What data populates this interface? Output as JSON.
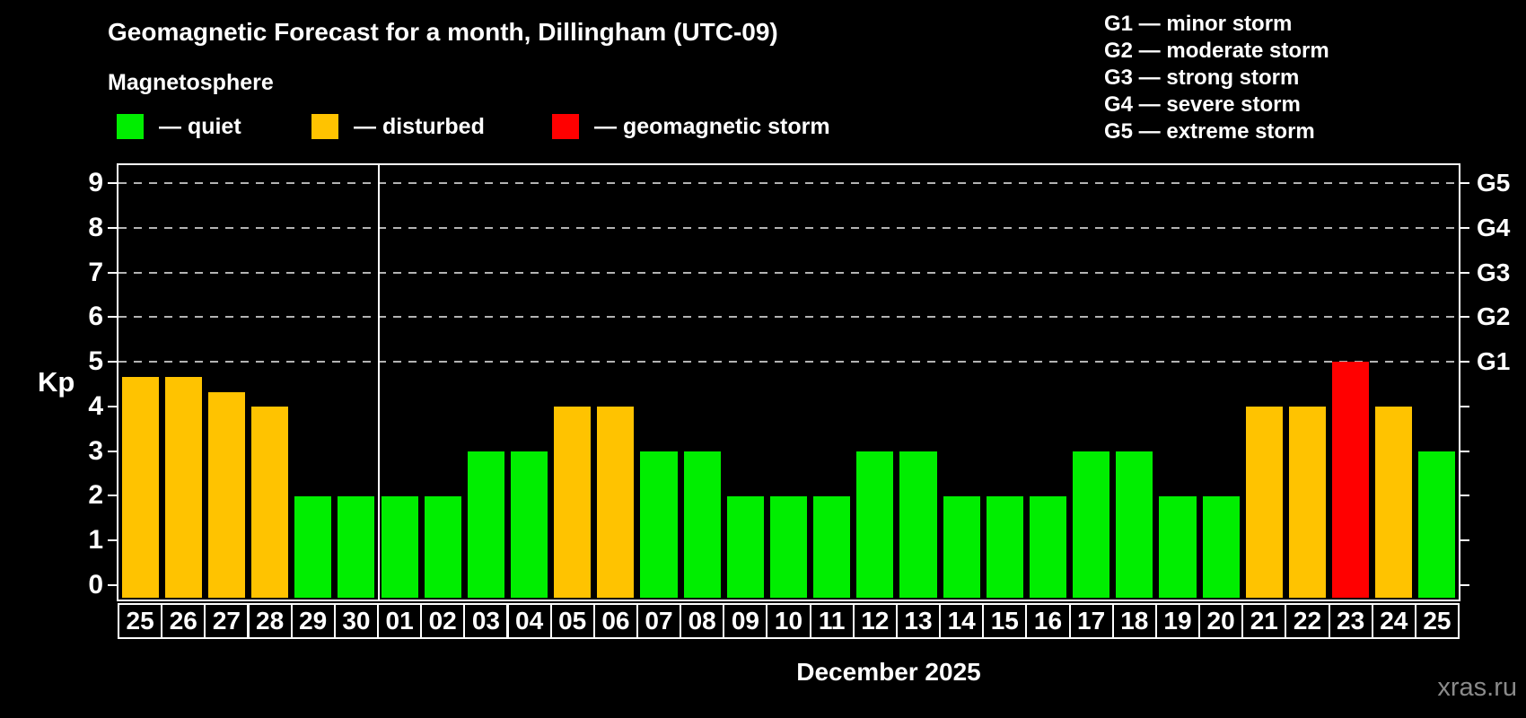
{
  "header": {
    "title": "Geomagnetic Forecast for a month, Dillingham (UTC-09)",
    "subtitle": "Magnetosphere"
  },
  "legend": {
    "items": [
      {
        "key": "quiet",
        "label": "— quiet",
        "color": "#00EE00",
        "x": 130
      },
      {
        "key": "disturbed",
        "label": "— disturbed",
        "color": "#FFC300",
        "x": 347
      },
      {
        "key": "storm",
        "label": "— geomagnetic storm",
        "color": "#FF0000",
        "x": 615
      }
    ]
  },
  "g_scale_legend": [
    "G1 — minor storm",
    "G2 — moderate storm",
    "G3 — strong storm",
    "G4 — severe storm",
    "G5 — extreme storm"
  ],
  "chart_data": {
    "type": "bar",
    "title": "Geomagnetic Forecast for a month, Dillingham (UTC-09)",
    "ylabel": "Kp",
    "xlabel": "December 2025",
    "x": [
      "25",
      "26",
      "27",
      "28",
      "29",
      "30",
      "01",
      "02",
      "03",
      "04",
      "05",
      "06",
      "07",
      "08",
      "09",
      "10",
      "11",
      "12",
      "13",
      "14",
      "15",
      "16",
      "17",
      "18",
      "19",
      "20",
      "21",
      "22",
      "23",
      "24",
      "25"
    ],
    "values": [
      4.67,
      4.67,
      4.33,
      4,
      2,
      2,
      2,
      2,
      3,
      3,
      4,
      4,
      3,
      3,
      2,
      2,
      2,
      3,
      3,
      2,
      2,
      2,
      3,
      3,
      2,
      2,
      4,
      4,
      5,
      4,
      3
    ],
    "states": [
      "disturbed",
      "disturbed",
      "disturbed",
      "disturbed",
      "quiet",
      "quiet",
      "quiet",
      "quiet",
      "quiet",
      "quiet",
      "disturbed",
      "disturbed",
      "quiet",
      "quiet",
      "quiet",
      "quiet",
      "quiet",
      "quiet",
      "quiet",
      "quiet",
      "quiet",
      "quiet",
      "quiet",
      "quiet",
      "quiet",
      "quiet",
      "disturbed",
      "disturbed",
      "storm",
      "disturbed",
      "quiet"
    ],
    "state_colors": {
      "quiet": "#00EE00",
      "disturbed": "#FFC300",
      "storm": "#FF0000"
    },
    "y_ticks": [
      0,
      1,
      2,
      3,
      4,
      5,
      6,
      7,
      8,
      9
    ],
    "gridlines_kp": [
      5,
      6,
      7,
      8,
      9
    ],
    "right_axis": [
      {
        "kp": 5,
        "label": "G1"
      },
      {
        "kp": 6,
        "label": "G2"
      },
      {
        "kp": 7,
        "label": "G3"
      },
      {
        "kp": 8,
        "label": "G4"
      },
      {
        "kp": 9,
        "label": "G5"
      }
    ],
    "ylim": [
      -0.32,
      9.4
    ],
    "month_separator_index": 6,
    "grid": "dashed-horizontal-on-storm-levels",
    "legend_position": "top-left"
  },
  "watermark": "xras.ru"
}
